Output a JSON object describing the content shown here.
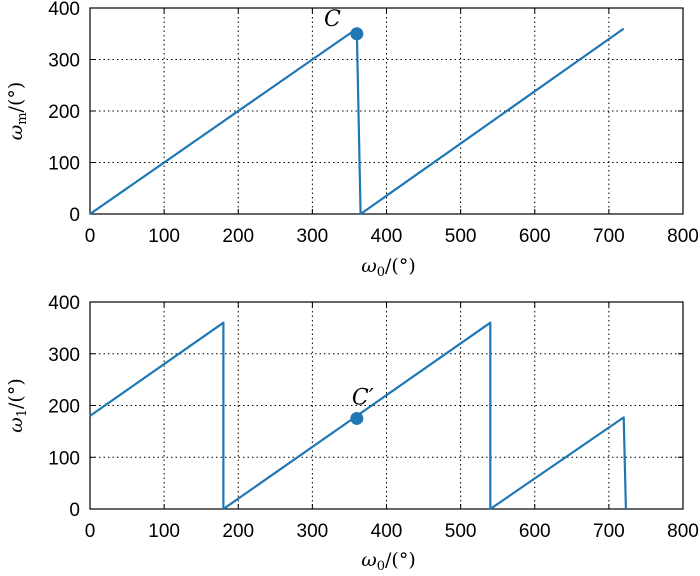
{
  "colors": {
    "series": "#1f77b4",
    "axis": "#000000"
  },
  "chart_data": [
    {
      "type": "line",
      "grid": true,
      "xlim": [
        0,
        800
      ],
      "ylim": [
        0,
        400
      ],
      "xticks": [
        "0",
        "100",
        "200",
        "300",
        "400",
        "500",
        "600",
        "700",
        "800"
      ],
      "yticks": [
        "0",
        "100",
        "200",
        "300",
        "400"
      ],
      "xlabel": {
        "symbol": "ω",
        "sub": "0",
        "unit": "/(°)"
      },
      "ylabel": {
        "symbol": "ω",
        "sub": "m",
        "unit": "/(°)"
      },
      "series": [
        {
          "x": [
            0,
            360,
            360,
            365,
            720
          ],
          "y": [
            0,
            360,
            350,
            0,
            360
          ]
        }
      ],
      "points": [
        {
          "x": 360,
          "y": 350,
          "label": "C"
        }
      ]
    },
    {
      "type": "line",
      "grid": true,
      "xlim": [
        0,
        800
      ],
      "ylim": [
        0,
        400
      ],
      "xticks": [
        "0",
        "100",
        "200",
        "300",
        "400",
        "500",
        "600",
        "700",
        "800"
      ],
      "yticks": [
        "0",
        "100",
        "200",
        "300",
        "400"
      ],
      "xlabel": {
        "symbol": "ω",
        "sub": "0",
        "unit": "/(°)"
      },
      "ylabel": {
        "symbol": "ω",
        "sub": "1",
        "unit": "/(°)"
      },
      "series": [
        {
          "x": [
            0,
            180,
            180,
            540,
            540,
            720,
            723
          ],
          "y": [
            180,
            360,
            0,
            360,
            0,
            177,
            0
          ]
        }
      ],
      "points": [
        {
          "x": 360,
          "y": 175,
          "label": "C′"
        }
      ]
    }
  ]
}
